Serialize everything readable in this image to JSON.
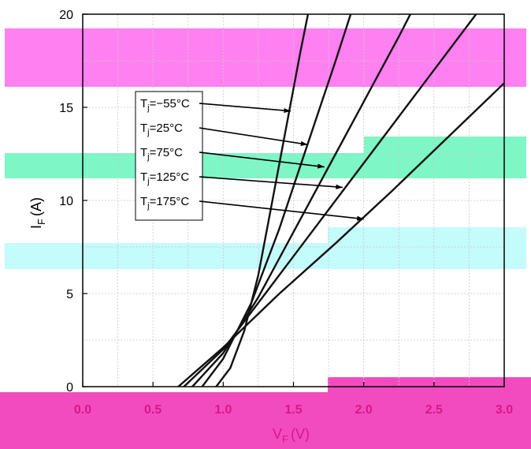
{
  "chart_data": {
    "type": "line",
    "xlabel": "V_F (V)",
    "ylabel": "I_F (A)",
    "xlim": [
      0,
      3.0
    ],
    "ylim": [
      0,
      20
    ],
    "x_ticks": [
      "0.0",
      "0.5",
      "1.0",
      "1.5",
      "2.0",
      "2.5",
      "3.0"
    ],
    "y_ticks": [
      "0",
      "5",
      "10",
      "15",
      "20"
    ],
    "grid": true,
    "series": [
      {
        "name": "Tj=-55°C",
        "points": [
          [
            0.95,
            0
          ],
          [
            1.05,
            1
          ],
          [
            1.15,
            3
          ],
          [
            1.25,
            6
          ],
          [
            1.35,
            10
          ],
          [
            1.45,
            14
          ],
          [
            1.55,
            18
          ],
          [
            1.63,
            21
          ]
        ]
      },
      {
        "name": "Tj=25°C",
        "points": [
          [
            0.85,
            0
          ],
          [
            1.0,
            1.5
          ],
          [
            1.2,
            4.5
          ],
          [
            1.4,
            8.5
          ],
          [
            1.6,
            13
          ],
          [
            1.8,
            17.5
          ],
          [
            1.95,
            21
          ]
        ]
      },
      {
        "name": "Tj=75°C",
        "points": [
          [
            0.78,
            0
          ],
          [
            1.0,
            1.8
          ],
          [
            1.25,
            4.8
          ],
          [
            1.5,
            8.3
          ],
          [
            1.75,
            11.8
          ],
          [
            2.0,
            15.3
          ],
          [
            2.25,
            18.8
          ],
          [
            2.4,
            21
          ]
        ]
      },
      {
        "name": "Tj=125°C",
        "points": [
          [
            0.72,
            0
          ],
          [
            1.0,
            2
          ],
          [
            1.3,
            5
          ],
          [
            1.6,
            8
          ],
          [
            1.9,
            11
          ],
          [
            2.2,
            14
          ],
          [
            2.5,
            17
          ],
          [
            2.8,
            20
          ],
          [
            2.9,
            21
          ]
        ]
      },
      {
        "name": "Tj=175°C",
        "points": [
          [
            0.68,
            0
          ],
          [
            1.0,
            2.1
          ],
          [
            1.4,
            5
          ],
          [
            1.8,
            7.7
          ],
          [
            2.2,
            10.5
          ],
          [
            2.6,
            13.4
          ],
          [
            3.0,
            16.3
          ]
        ]
      }
    ],
    "legend": {
      "placement": "top-left",
      "items": [
        {
          "prefix": "T",
          "sub": "j",
          "rest": "=−55°C",
          "pointer": [
            1.48,
            14.8
          ]
        },
        {
          "prefix": "T",
          "sub": "j",
          "rest": "=25°C",
          "pointer": [
            1.6,
            13.0
          ]
        },
        {
          "prefix": "T",
          "sub": "j",
          "rest": "=75°C",
          "pointer": [
            1.72,
            11.8
          ]
        },
        {
          "prefix": "T",
          "sub": "j",
          "rest": "=125°C",
          "pointer": [
            1.85,
            10.7
          ]
        },
        {
          "prefix": "T",
          "sub": "j",
          "rest": "=175°C",
          "pointer": [
            2.0,
            9.0
          ]
        }
      ]
    }
  },
  "labels": {
    "x_main": "V",
    "x_sub": "F",
    "x_unit": "(V)",
    "y_main": "I",
    "y_sub": "F",
    "y_unit": "(A)"
  },
  "colors": {
    "series": "#111111",
    "grid": "#c9c9c9",
    "axis_text_x": "#d6188a",
    "band_magenta": "#ff77ee",
    "band_green": "#6dfbc1",
    "band_cyan": "#bdfbfb",
    "band_bottom": "#f53ab8"
  }
}
